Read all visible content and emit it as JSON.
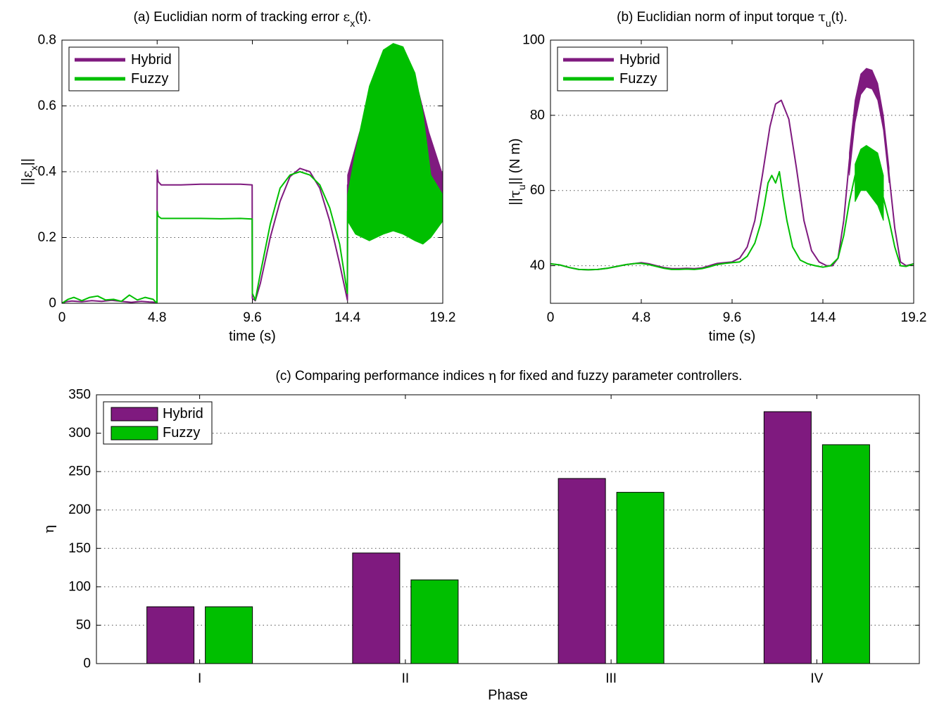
{
  "colors": {
    "hybrid": "#7f1a7f",
    "fuzzy": "#00bf00",
    "grid": "#555555"
  },
  "chart_data": [
    {
      "id": "a",
      "type": "line",
      "title": {
        "pre": "(a) Euclidian norm of tracking error ",
        "sym": "ε",
        "sub": "x",
        "post": "(t)."
      },
      "xlabel": "time (s)",
      "ylabel": {
        "pre": "||",
        "sym": "ε",
        "sub": "x",
        "post": "||"
      },
      "xlim": [
        0,
        19.2
      ],
      "ylim": [
        0,
        0.8
      ],
      "xticks": [
        0,
        4.8,
        9.6,
        14.4,
        19.2
      ],
      "xticklabels": [
        "0",
        "4.8",
        "9.6",
        "14.4",
        "19.2"
      ],
      "yticks": [
        0,
        0.2,
        0.4,
        0.6,
        0.8
      ],
      "yticklabels": [
        "0",
        "0.2",
        "0.4",
        "0.6",
        "0.8"
      ],
      "grid": "y-dotted",
      "legend": {
        "position": "top-left",
        "entries": [
          "Hybrid",
          "Fuzzy"
        ]
      },
      "series": [
        {
          "name": "Hybrid",
          "x": [
            0,
            0.2,
            0.5,
            1.0,
            1.5,
            2.0,
            2.5,
            3.0,
            3.5,
            4.0,
            4.4,
            4.79,
            4.8,
            4.85,
            5.0,
            6.0,
            7.0,
            8.0,
            9.0,
            9.59,
            9.6,
            9.75,
            10.0,
            10.5,
            11.0,
            11.5,
            12.0,
            12.5,
            13.0,
            13.5,
            14.0,
            14.39,
            14.4,
            14.5,
            19.2
          ],
          "y": [
            0.0,
            0.005,
            0.007,
            0.005,
            0.008,
            0.006,
            0.009,
            0.006,
            0.003,
            0.006,
            0.004,
            0.003,
            0.405,
            0.37,
            0.36,
            0.36,
            0.362,
            0.362,
            0.362,
            0.36,
            0.015,
            0.008,
            0.06,
            0.2,
            0.31,
            0.385,
            0.41,
            0.4,
            0.35,
            0.25,
            0.12,
            0.01,
            0.36,
            0.35,
            0.35
          ],
          "band": {
            "x": [
              14.4,
              15.0,
              16.0,
              16.7,
              17.0,
              17.5,
              18.0,
              18.5,
              19.2
            ],
            "low": [
              0.31,
              0.27,
              0.26,
              0.26,
              0.255,
              0.27,
              0.26,
              0.24,
              0.26
            ],
            "high": [
              0.39,
              0.52,
              0.65,
              0.7,
              0.72,
              0.7,
              0.64,
              0.52,
              0.39
            ]
          }
        },
        {
          "name": "Fuzzy",
          "x": [
            0,
            0.3,
            0.6,
            1.0,
            1.4,
            1.8,
            2.2,
            2.6,
            3.0,
            3.4,
            3.8,
            4.2,
            4.6,
            4.79,
            4.8,
            4.85,
            5.0,
            6.0,
            7.0,
            8.0,
            9.0,
            9.59,
            9.6,
            9.75,
            10.0,
            10.5,
            11.0,
            11.5,
            12.0,
            12.5,
            13.0,
            13.5,
            14.0,
            14.39,
            14.4,
            14.5,
            19.2
          ],
          "y": [
            0.0,
            0.012,
            0.018,
            0.008,
            0.018,
            0.022,
            0.01,
            0.012,
            0.006,
            0.025,
            0.01,
            0.018,
            0.012,
            0.0,
            0.28,
            0.265,
            0.258,
            0.258,
            0.258,
            0.257,
            0.258,
            0.256,
            0.03,
            0.01,
            0.09,
            0.24,
            0.35,
            0.39,
            0.4,
            0.39,
            0.36,
            0.29,
            0.18,
            0.03,
            0.28,
            0.27,
            0.27
          ],
          "band": {
            "x": [
              14.4,
              14.8,
              15.5,
              16.2,
              16.7,
              17.2,
              17.8,
              18.2,
              18.6,
              19.2
            ],
            "low": [
              0.25,
              0.21,
              0.19,
              0.21,
              0.22,
              0.21,
              0.19,
              0.18,
              0.2,
              0.25
            ],
            "high": [
              0.33,
              0.46,
              0.66,
              0.77,
              0.79,
              0.78,
              0.7,
              0.58,
              0.39,
              0.33
            ]
          }
        }
      ]
    },
    {
      "id": "b",
      "type": "line",
      "title": {
        "pre": "(b) Euclidian norm of input torque ",
        "sym": "τ",
        "sub": "u",
        "post": "(t)."
      },
      "xlabel": "time (s)",
      "ylabel": {
        "pre": "||",
        "sym": "τ",
        "sub": "u",
        "post": "|| (N m)"
      },
      "xlim": [
        0,
        19.2
      ],
      "ylim": [
        30,
        100
      ],
      "xticks": [
        0,
        4.8,
        9.6,
        14.4,
        19.2
      ],
      "xticklabels": [
        "0",
        "4.8",
        "9.6",
        "14.4",
        "19.2"
      ],
      "yticks": [
        40,
        60,
        80,
        100
      ],
      "yticklabels": [
        "40",
        "60",
        "80",
        "100"
      ],
      "grid": "y-dotted",
      "legend": {
        "position": "top-left",
        "entries": [
          "Hybrid",
          "Fuzzy"
        ]
      },
      "series": [
        {
          "name": "Hybrid",
          "x": [
            0,
            0.5,
            1.0,
            1.5,
            2.0,
            2.5,
            3.0,
            3.5,
            4.0,
            4.5,
            4.8,
            5.2,
            5.6,
            6.0,
            6.4,
            6.8,
            7.2,
            7.6,
            8.0,
            8.4,
            8.8,
            9.2,
            9.6,
            10.0,
            10.4,
            10.8,
            11.2,
            11.6,
            11.9,
            12.2,
            12.6,
            13.0,
            13.4,
            13.8,
            14.2,
            14.6,
            14.9,
            15.2,
            15.5,
            15.8,
            16.1,
            16.4,
            16.7,
            17.0,
            17.3,
            17.6,
            17.9,
            18.2,
            18.5,
            18.8,
            19.2
          ],
          "y": [
            40.5,
            40.2,
            39.5,
            39.0,
            38.9,
            39.0,
            39.3,
            39.8,
            40.3,
            40.6,
            40.8,
            40.5,
            40.0,
            39.5,
            39.2,
            39.2,
            39.3,
            39.2,
            39.4,
            40.0,
            40.6,
            40.8,
            41.0,
            42.0,
            45.0,
            52.0,
            64.0,
            77.0,
            83.0,
            84.0,
            79.0,
            66.0,
            52.0,
            44.0,
            41.0,
            40.0,
            40.0,
            42.0,
            52.0,
            68.0,
            81.0,
            88.0,
            90.0,
            89.5,
            86.0,
            78.0,
            64.0,
            50.0,
            41.0,
            40.0,
            40.5
          ],
          "band": {
            "x": [
              15.8,
              16.1,
              16.4,
              16.7,
              17.0,
              17.3,
              17.6,
              17.9
            ],
            "low": [
              64.0,
              78.0,
              85.5,
              87.5,
              87.0,
              84.0,
              76.0,
              62.0
            ],
            "high": [
              70.0,
              84.0,
              91.0,
              92.5,
              92.0,
              88.5,
              80.0,
              66.0
            ]
          }
        },
        {
          "name": "Fuzzy",
          "x": [
            0,
            0.5,
            1.0,
            1.5,
            2.0,
            2.5,
            3.0,
            3.5,
            4.0,
            4.5,
            4.8,
            5.2,
            5.6,
            6.0,
            6.4,
            6.8,
            7.2,
            7.6,
            8.0,
            8.4,
            8.8,
            9.2,
            9.6,
            10.0,
            10.4,
            10.8,
            11.1,
            11.3,
            11.5,
            11.7,
            11.9,
            12.1,
            12.3,
            12.5,
            12.8,
            13.2,
            13.6,
            14.0,
            14.4,
            14.8,
            15.2,
            15.5,
            15.8,
            16.1,
            16.4,
            16.7,
            17.0,
            17.3,
            17.6,
            17.9,
            18.2,
            18.5,
            18.8,
            19.2
          ],
          "y": [
            40.5,
            40.2,
            39.5,
            39.0,
            38.9,
            39.0,
            39.3,
            39.8,
            40.3,
            40.6,
            40.6,
            40.3,
            39.8,
            39.3,
            39.0,
            39.0,
            39.1,
            39.0,
            39.2,
            39.7,
            40.3,
            40.6,
            40.8,
            41.0,
            42.5,
            46.0,
            51.0,
            56.0,
            62.0,
            64.0,
            62.0,
            65.0,
            58.0,
            52.0,
            45.0,
            41.5,
            40.5,
            40.0,
            39.6,
            40.0,
            42.0,
            48.0,
            57.0,
            64.0,
            67.0,
            66.0,
            64.0,
            62.0,
            58.0,
            52.0,
            45.0,
            40.0,
            39.8,
            40.5
          ],
          "band": {
            "x": [
              16.1,
              16.4,
              16.7,
              17.0,
              17.3,
              17.6
            ],
            "low": [
              57.0,
              60.0,
              60.0,
              58.0,
              56.0,
              52.0
            ],
            "high": [
              67.0,
              71.0,
              72.0,
              71.0,
              70.0,
              64.0
            ]
          }
        }
      ]
    },
    {
      "id": "c",
      "type": "bar",
      "title": {
        "pre": "(c) Comparing performance indices ",
        "sym": "η",
        "sub": "",
        "post": " for fixed and fuzzy parameter controllers."
      },
      "xlabel": "Phase",
      "ylabel": {
        "pre": "",
        "sym": "η",
        "sub": "",
        "post": ""
      },
      "categories": [
        "I",
        "II",
        "III",
        "IV"
      ],
      "ylim": [
        0,
        350
      ],
      "yticks": [
        0,
        50,
        100,
        150,
        200,
        250,
        300,
        350
      ],
      "yticklabels": [
        "0",
        "50",
        "100",
        "150",
        "200",
        "250",
        "300",
        "350"
      ],
      "grid": "y-dotted",
      "legend": {
        "position": "top-left",
        "entries": [
          "Hybrid",
          "Fuzzy"
        ]
      },
      "series": [
        {
          "name": "Hybrid",
          "values": [
            74,
            144,
            241,
            328
          ]
        },
        {
          "name": "Fuzzy",
          "values": [
            74,
            109,
            223,
            285
          ]
        }
      ]
    }
  ]
}
